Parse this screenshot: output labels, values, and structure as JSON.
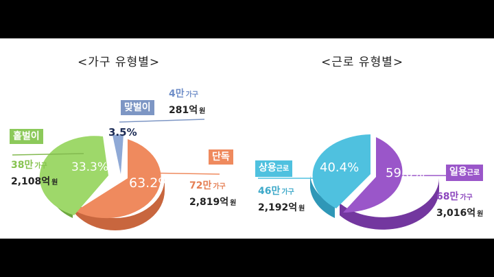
{
  "chart_data": [
    {
      "type": "pie",
      "title": "<가구 유형별>",
      "slices": [
        {
          "name": "맞벌이",
          "pct_label": "3.5%",
          "value": 3.5,
          "count": "4만",
          "count_unit": "가구",
          "amount": "281억",
          "amount_unit": "원",
          "color": "#8fa9d6"
        },
        {
          "name": "단독",
          "pct_label": "63.2%",
          "value": 63.2,
          "count": "72만",
          "count_unit": "가구",
          "amount": "2,819억",
          "amount_unit": "원",
          "color": "#ef8a5e"
        },
        {
          "name": "홑벌이",
          "pct_label": "33.3%",
          "value": 33.3,
          "count": "38만",
          "count_unit": "가구",
          "amount": "2,108억",
          "amount_unit": "원",
          "color": "#9ed86a"
        }
      ]
    },
    {
      "type": "pie",
      "title": "<근로 유형별>",
      "slices": [
        {
          "name": "상용",
          "name_suffix": "근로",
          "pct_label": "40.4%",
          "value": 40.4,
          "count": "46만",
          "count_unit": "가구",
          "amount": "2,192억",
          "amount_unit": "원",
          "color": "#4fc1df"
        },
        {
          "name": "일용",
          "name_suffix": "근로",
          "pct_label": "59.6%",
          "value": 59.6,
          "count": "68만",
          "count_unit": "가구",
          "amount": "3,016억",
          "amount_unit": "원",
          "color": "#9a56c9"
        }
      ]
    }
  ]
}
